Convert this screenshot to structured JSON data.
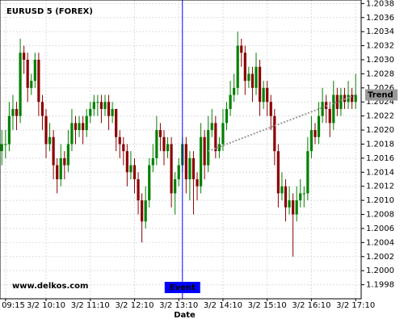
{
  "chart_data": {
    "type": "candlestick",
    "title": "EURUSD 5 (FOREX)",
    "watermark": "www.delkos.com",
    "x_label": "Date",
    "up_color": "#008000",
    "down_color": "#8b0000",
    "grid": true,
    "xlim": [
      -0.5,
      97.5
    ],
    "ylim": [
      1.1996,
      1.20385
    ],
    "xticks": [
      {
        "value": 1,
        "label": "3/2 09:15"
      },
      {
        "value": 12,
        "label": "3/2 10:10"
      },
      {
        "value": 24,
        "label": "3/2 11:10"
      },
      {
        "value": 36,
        "label": "3/2 12:10"
      },
      {
        "value": 48,
        "label": "3/2 13:10"
      },
      {
        "value": 60,
        "label": "3/2 14:10"
      },
      {
        "value": 72,
        "label": "3/2 15:10"
      },
      {
        "value": 84,
        "label": "3/2 16:10"
      },
      {
        "value": 96,
        "label": "3/2 17:10"
      }
    ],
    "yticks": [
      1.1998,
      {
        "value": 1.2,
        "label": "1.2000"
      },
      1.2002,
      1.2004,
      1.2006,
      1.2008,
      {
        "value": 1.201,
        "label": "1.2010"
      },
      1.2012,
      1.2014,
      1.2016,
      1.2018,
      {
        "value": 1.202,
        "label": "1.2020"
      },
      1.2022,
      1.2024,
      1.2026,
      1.2028,
      {
        "value": 1.203,
        "label": "1.2030"
      },
      1.2032,
      1.2034,
      1.2036,
      1.2038
    ],
    "event": {
      "x": 49,
      "label": "Event",
      "color": "#0000ff"
    },
    "trend": {
      "label": "Trend",
      "start": [
        56,
        1.2017
      ],
      "end": [
        96,
        1.2025
      ],
      "color": "#999999"
    },
    "candles": [
      [
        1.2017,
        1.202,
        1.2015,
        1.2018
      ],
      [
        1.2018,
        1.202,
        1.2016,
        1.2018
      ],
      [
        1.2018,
        1.2024,
        1.2017,
        1.2022
      ],
      [
        1.2022,
        1.2025,
        1.202,
        1.2023
      ],
      [
        1.2023,
        1.2024,
        1.202,
        1.2022
      ],
      [
        1.2022,
        1.2033,
        1.2021,
        1.2031
      ],
      [
        1.2031,
        1.2032,
        1.2028,
        1.203
      ],
      [
        1.203,
        1.2031,
        1.2024,
        1.2026
      ],
      [
        1.2026,
        1.2028,
        1.2025,
        1.2027
      ],
      [
        1.2027,
        1.2031,
        1.2026,
        1.203
      ],
      [
        1.203,
        1.2031,
        1.2022,
        1.2024
      ],
      [
        1.2024,
        1.2025,
        1.202,
        1.2022
      ],
      [
        1.2022,
        1.2023,
        1.2016,
        1.2018
      ],
      [
        1.2018,
        1.2021,
        1.2017,
        1.2019
      ],
      [
        1.2019,
        1.202,
        1.2013,
        1.2015
      ],
      [
        1.2015,
        1.2016,
        1.2011,
        1.2013
      ],
      [
        1.2013,
        1.2018,
        1.2012,
        1.2016
      ],
      [
        1.2016,
        1.2017,
        1.2013,
        1.2015
      ],
      [
        1.2015,
        1.202,
        1.2014,
        1.2018
      ],
      [
        1.2018,
        1.2023,
        1.2017,
        1.2021
      ],
      [
        1.2021,
        1.2022,
        1.2018,
        1.202
      ],
      [
        1.202,
        1.2022,
        1.2019,
        1.2021
      ],
      [
        1.2021,
        1.2022,
        1.2018,
        1.202
      ],
      [
        1.202,
        1.2023,
        1.2019,
        1.2022
      ],
      [
        1.2022,
        1.2024,
        1.2021,
        1.2023
      ],
      [
        1.2023,
        1.2025,
        1.2022,
        1.2024
      ],
      [
        1.2024,
        1.2025,
        1.2022,
        1.2024
      ],
      [
        1.2024,
        1.2025,
        1.2021,
        1.2023
      ],
      [
        1.2023,
        1.2025,
        1.2022,
        1.2024
      ],
      [
        1.2024,
        1.2025,
        1.202,
        1.2022
      ],
      [
        1.2022,
        1.2024,
        1.2021,
        1.2023
      ],
      [
        1.2023,
        1.2023,
        1.2017,
        1.2019
      ],
      [
        1.2019,
        1.202,
        1.2016,
        1.2018
      ],
      [
        1.2018,
        1.2019,
        1.2015,
        1.2017
      ],
      [
        1.2017,
        1.2018,
        1.2012,
        1.2014
      ],
      [
        1.2014,
        1.2017,
        1.2013,
        1.2015
      ],
      [
        1.2015,
        1.2016,
        1.2011,
        1.2013
      ],
      [
        1.2013,
        1.2014,
        1.2008,
        1.201
      ],
      [
        1.201,
        1.2011,
        1.2004,
        1.2007
      ],
      [
        1.2007,
        1.2012,
        1.2006,
        1.201
      ],
      [
        1.201,
        1.2016,
        1.2009,
        1.2015
      ],
      [
        1.2015,
        1.2018,
        1.2014,
        1.2016
      ],
      [
        1.2016,
        1.2022,
        1.2015,
        1.202
      ],
      [
        1.202,
        1.2021,
        1.2017,
        1.2019
      ],
      [
        1.2019,
        1.202,
        1.2015,
        1.2017
      ],
      [
        1.2017,
        1.2019,
        1.2016,
        1.2018
      ],
      [
        1.2018,
        1.2019,
        1.2009,
        1.2011
      ],
      [
        1.2011,
        1.2014,
        1.2008,
        1.2013
      ],
      [
        1.2013,
        1.2016,
        1.2012,
        1.2015
      ],
      [
        1.2015,
        1.2019,
        1.2014,
        1.2018
      ],
      [
        1.2018,
        1.2019,
        1.2011,
        1.2013
      ],
      [
        1.2013,
        1.2017,
        1.201,
        1.2016
      ],
      [
        1.2016,
        1.2017,
        1.2008,
        1.2013
      ],
      [
        1.2013,
        1.2014,
        1.201,
        1.2012
      ],
      [
        1.2012,
        1.2021,
        1.2011,
        1.2019
      ],
      [
        1.2019,
        1.202,
        1.2013,
        1.2015
      ],
      [
        1.2015,
        1.2022,
        1.2014,
        1.202
      ],
      [
        1.202,
        1.2023,
        1.2019,
        1.2021
      ],
      [
        1.2021,
        1.2022,
        1.2016,
        1.2017
      ],
      [
        1.2017,
        1.2019,
        1.2016,
        1.2018
      ],
      [
        1.2018,
        1.2023,
        1.2017,
        1.2021
      ],
      [
        1.2021,
        1.2024,
        1.202,
        1.2023
      ],
      [
        1.2023,
        1.2027,
        1.2022,
        1.2025
      ],
      [
        1.2025,
        1.2028,
        1.2024,
        1.2026
      ],
      [
        1.2026,
        1.2034,
        1.2025,
        1.2032
      ],
      [
        1.2032,
        1.2033,
        1.2029,
        1.2031
      ],
      [
        1.2031,
        1.2032,
        1.2025,
        1.2027
      ],
      [
        1.2027,
        1.2029,
        1.2026,
        1.2028
      ],
      [
        1.2028,
        1.2029,
        1.2024,
        1.2026
      ],
      [
        1.2026,
        1.2031,
        1.2025,
        1.2029
      ],
      [
        1.2029,
        1.203,
        1.2022,
        1.2024
      ],
      [
        1.2024,
        1.2027,
        1.2023,
        1.2026
      ],
      [
        1.2026,
        1.2027,
        1.2022,
        1.2024
      ],
      [
        1.2024,
        1.2025,
        1.202,
        1.2022
      ],
      [
        1.2022,
        1.2023,
        1.2015,
        1.2017
      ],
      [
        1.2017,
        1.2018,
        1.2009,
        1.2011
      ],
      [
        1.2011,
        1.2014,
        1.201,
        1.2012
      ],
      [
        1.2012,
        1.2013,
        1.2007,
        1.2009
      ],
      [
        1.2009,
        1.2012,
        1.2008,
        1.201
      ],
      [
        1.201,
        1.2011,
        1.2002,
        1.2008
      ],
      [
        1.2008,
        1.2012,
        1.2007,
        1.201
      ],
      [
        1.201,
        1.2013,
        1.2009,
        1.2011
      ],
      [
        1.2011,
        1.2012,
        1.2009,
        1.2011
      ],
      [
        1.2011,
        1.2019,
        1.201,
        1.2017
      ],
      [
        1.2017,
        1.2022,
        1.2016,
        1.202
      ],
      [
        1.202,
        1.2021,
        1.2018,
        1.2019
      ],
      [
        1.2019,
        1.2024,
        1.2018,
        1.2022
      ],
      [
        1.2022,
        1.2026,
        1.2021,
        1.2024
      ],
      [
        1.2024,
        1.2025,
        1.2021,
        1.2023
      ],
      [
        1.2023,
        1.2024,
        1.2019,
        1.2021
      ],
      [
        1.2021,
        1.2027,
        1.202,
        1.2025
      ],
      [
        1.2025,
        1.2026,
        1.2022,
        1.2023
      ],
      [
        1.2023,
        1.2026,
        1.2022,
        1.2025
      ],
      [
        1.2025,
        1.2026,
        1.2023,
        1.2024
      ],
      [
        1.2024,
        1.2027,
        1.2023,
        1.2025
      ],
      [
        1.2025,
        1.2026,
        1.2023,
        1.2024
      ],
      [
        1.2024,
        1.2028,
        1.2023,
        1.2025
      ]
    ]
  }
}
